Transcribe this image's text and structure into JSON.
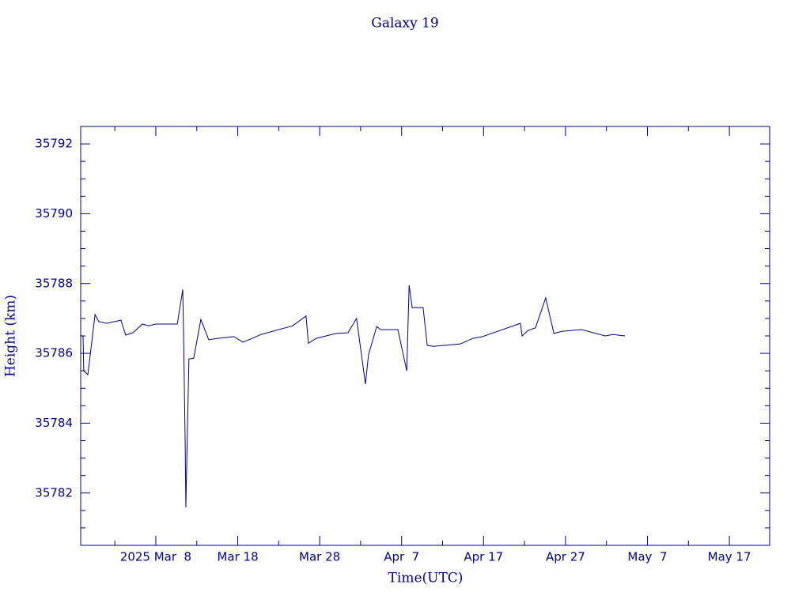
{
  "chart_data": {
    "type": "line",
    "title": "Galaxy 19",
    "xlabel": "Time(UTC)",
    "ylabel": "Height (km)",
    "color": "#00008b",
    "x": [
      "2025-02-26T20:00",
      "2025-02-27T03:00",
      "2025-02-27T05:00",
      "2025-02-27T17:00",
      "2025-02-28T14:00",
      "2025-03-01T01:00",
      "2025-03-02T00:00",
      "2025-03-03T18:00",
      "2025-03-04T08:00",
      "2025-03-05T05:00",
      "2025-03-06T09:00",
      "2025-03-07T03:00",
      "2025-03-08T00:00",
      "2025-03-10T15:00",
      "2025-03-11T07:00",
      "2025-03-11T09:00",
      "2025-03-11T14:00",
      "2025-03-11T16:00",
      "2025-03-12T01:00",
      "2025-03-12T15:00",
      "2025-03-13T12:00",
      "2025-03-14T11:00",
      "2025-03-15T13:00",
      "2025-03-17T13:00",
      "2025-03-18T15:00",
      "2025-03-19T14:00",
      "2025-03-20T20:00",
      "2025-03-24T17:00",
      "2025-03-26T08:00",
      "2025-03-26T15:00",
      "2025-03-27T14:00",
      "2025-03-30T00:00",
      "2025-03-31T11:00",
      "2025-04-01T12:00",
      "2025-04-02T14:00",
      "2025-04-02T23:00",
      "2025-04-03T23:00",
      "2025-04-04T10:00",
      "2025-04-06T13:00",
      "2025-04-07T15:00",
      "2025-04-07T22:00",
      "2025-04-08T07:00",
      "2025-04-09T15:00",
      "2025-04-10T03:00",
      "2025-04-10T21:00",
      "2025-04-14T04:00",
      "2025-04-15T17:00",
      "2025-04-16T21:00",
      "2025-04-21T12:00",
      "2025-04-21T17:00",
      "2025-04-22T11:00",
      "2025-04-23T08:00",
      "2025-04-24T14:00",
      "2025-04-25T14:00",
      "2025-04-26T13:00",
      "2025-04-28T23:00",
      "2025-05-01T20:00",
      "2025-05-02T19:00",
      "2025-05-04T06:00"
    ],
    "values": [
      35786.52,
      35786.48,
      35785.5,
      35785.39,
      35787.11,
      35786.91,
      35786.86,
      35786.95,
      35786.52,
      35786.59,
      35786.84,
      35786.79,
      35786.84,
      35786.84,
      35787.83,
      35786.77,
      35783.46,
      35781.59,
      35785.84,
      35785.86,
      35786.97,
      35786.39,
      35786.43,
      35786.48,
      35786.32,
      35786.41,
      35786.54,
      35786.79,
      35787.07,
      35786.29,
      35786.43,
      35786.57,
      35786.59,
      35787.0,
      35785.12,
      35785.96,
      35786.77,
      35786.68,
      35786.68,
      35785.5,
      35787.95,
      35787.31,
      35787.31,
      35786.23,
      35786.2,
      35786.27,
      35786.43,
      35786.48,
      35786.86,
      35786.5,
      35786.66,
      35786.73,
      35787.59,
      35786.57,
      35786.63,
      35786.68,
      35786.5,
      35786.54,
      35786.5
    ],
    "xlim": [
      "2025-02-26T20:00",
      "2025-05-21T22:00"
    ],
    "xticks": [
      {
        "value": "2025-03-08T00:00",
        "label": "2025 Mar  8"
      },
      {
        "value": "2025-03-18T00:00",
        "label": "Mar 18"
      },
      {
        "value": "2025-03-28T00:00",
        "label": "Mar 28"
      },
      {
        "value": "2025-04-07T00:00",
        "label": "Apr  7"
      },
      {
        "value": "2025-04-17T00:00",
        "label": "Apr 17"
      },
      {
        "value": "2025-04-27T00:00",
        "label": "Apr 27"
      },
      {
        "value": "2025-05-07T00:00",
        "label": "May  7"
      },
      {
        "value": "2025-05-17T00:00",
        "label": "May 17"
      }
    ],
    "xminorticks": [
      "2025-03-03T00:00",
      "2025-03-13T00:00",
      "2025-03-23T00:00",
      "2025-04-02T00:00",
      "2025-04-12T00:00",
      "2025-04-22T00:00",
      "2025-05-02T00:00",
      "2025-05-12T00:00"
    ],
    "ylim": [
      35780.5,
      35792.5
    ],
    "yticks": [
      35782,
      35784,
      35786,
      35788,
      35790,
      35792
    ],
    "yminorticks": [
      35781,
      35781.5,
      35782.5,
      35783,
      35783.5,
      35784.5,
      35785,
      35785.5,
      35786.5,
      35787,
      35787.5,
      35788.5,
      35789,
      35789.5,
      35790.5,
      35791,
      35791.5
    ]
  }
}
